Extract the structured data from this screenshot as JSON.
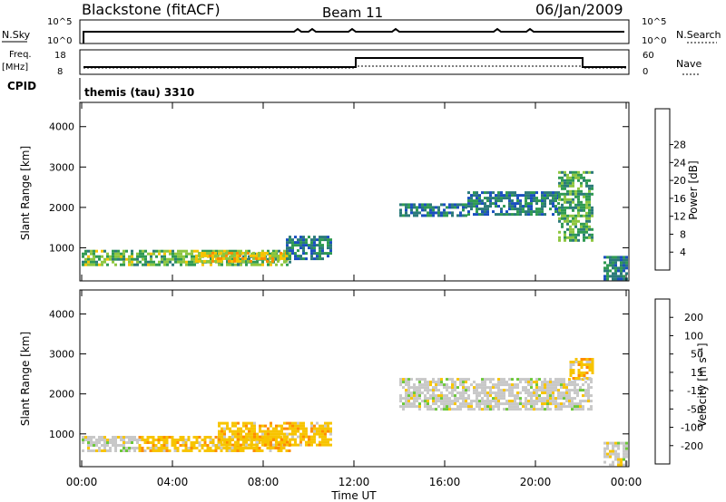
{
  "header": {
    "station": "Blackstone (fitACF)",
    "beam": "Beam 11",
    "date": "06/Jan/2009"
  },
  "top_panels": {
    "nsky_label": "N.Sky",
    "nsky_ticks": [
      "10^5",
      "10^0"
    ],
    "nsearch_label": "N.Search",
    "nsearch_ticks": [
      "10^5",
      "10^0"
    ],
    "freq_label": "Freq.",
    "freq_unit": "[MHz]",
    "freq_ticks": [
      "18",
      "8"
    ],
    "nave_label": "Nave",
    "nave_ticks": [
      "60",
      "0"
    ],
    "cpid_label": "CPID",
    "cpid_value": "themis (tau) 3310"
  },
  "chart_data": [
    {
      "type": "heatmap",
      "name": "power",
      "ylabel": "Slant Range [km]",
      "xlabel": "Time UT",
      "xlim": [
        0,
        24
      ],
      "ylim": [
        180,
        4600
      ],
      "yticks": [
        "1000",
        "2000",
        "3000",
        "4000"
      ],
      "xticks": [
        "00:00",
        "04:00",
        "08:00",
        "12:00",
        "16:00",
        "20:00",
        "00:00"
      ],
      "colorbar": {
        "label": "Power [dB]",
        "ticks": [
          "4",
          "8",
          "12",
          "16",
          "20",
          "24",
          "28"
        ],
        "range": [
          0,
          32
        ],
        "colors": [
          "#0000ee",
          "#1a4fbf",
          "#2b7a7a",
          "#2f9a52",
          "#8dc63f",
          "#f7c400",
          "#ff8c00",
          "#e34000",
          "#cc0000"
        ]
      },
      "regions": [
        {
          "t0": 0.0,
          "t1": 9.2,
          "r0": 550,
          "r1": 950,
          "value": 14
        },
        {
          "t0": 5.0,
          "t1": 9.0,
          "r0": 650,
          "r1": 900,
          "value": 20
        },
        {
          "t0": 9.0,
          "t1": 11.0,
          "r0": 700,
          "r1": 1300,
          "value": 8
        },
        {
          "t0": 14.0,
          "t1": 17.0,
          "r0": 1800,
          "r1": 2100,
          "value": 8
        },
        {
          "t0": 17.0,
          "t1": 21.0,
          "r0": 1800,
          "r1": 2400,
          "value": 8
        },
        {
          "t0": 21.0,
          "t1": 22.5,
          "r0": 1200,
          "r1": 2900,
          "value": 12
        },
        {
          "t0": 23.0,
          "t1": 24.0,
          "r0": 200,
          "r1": 800,
          "value": 8
        }
      ]
    },
    {
      "type": "heatmap",
      "name": "velocity",
      "ylabel": "Slant Range [km]",
      "xlabel": "Time UT",
      "xlim": [
        0,
        24
      ],
      "ylim": [
        180,
        4600
      ],
      "yticks": [
        "1000",
        "2000",
        "3000",
        "4000"
      ],
      "xticks": [
        "00:00",
        "04:00",
        "08:00",
        "12:00",
        "16:00",
        "20:00",
        "00:00"
      ],
      "colorbar": {
        "label": "Velocity [m s⁻¹]",
        "ticks": [
          "200",
          "100",
          "50",
          "15",
          "-15",
          "-50",
          "-100",
          "-200"
        ],
        "colors": [
          "#1030c0",
          "#2a7ad0",
          "#3aa86a",
          "#6cc83a",
          "#c8c8c8",
          "#f7c400",
          "#ff8c00",
          "#e84000",
          "#cc0000"
        ]
      },
      "regions": [
        {
          "t0": 0.0,
          "t1": 2.5,
          "r0": 550,
          "r1": 950,
          "value": 0
        },
        {
          "t0": 2.5,
          "t1": 9.2,
          "r0": 550,
          "r1": 950,
          "value": -30
        },
        {
          "t0": 6.0,
          "t1": 11.0,
          "r0": 700,
          "r1": 1300,
          "value": -30
        },
        {
          "t0": 14.0,
          "t1": 22.5,
          "r0": 1600,
          "r1": 2400,
          "value": 0
        },
        {
          "t0": 21.5,
          "t1": 22.5,
          "r0": 2400,
          "r1": 2900,
          "value": -30
        },
        {
          "t0": 23.0,
          "t1": 24.0,
          "r0": 200,
          "r1": 800,
          "value": 0
        }
      ]
    }
  ]
}
